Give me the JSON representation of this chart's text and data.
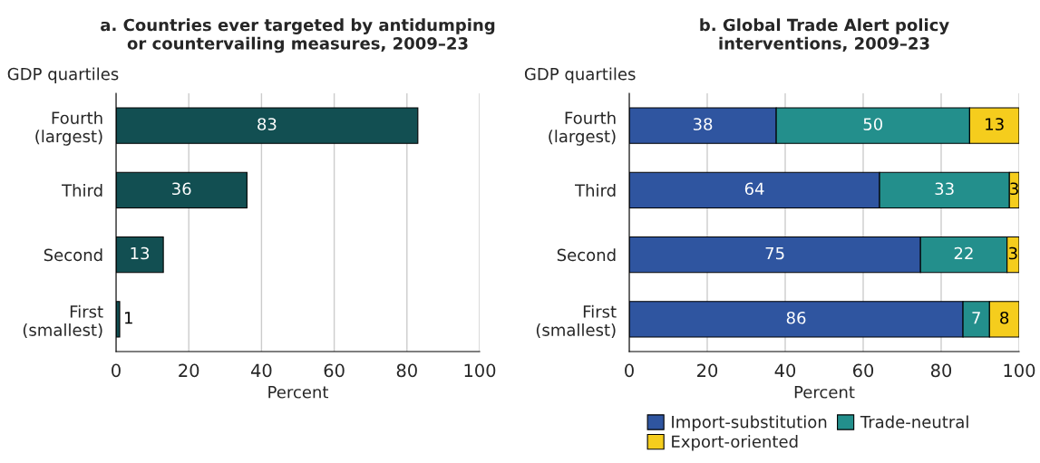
{
  "chart_data": [
    {
      "type": "bar",
      "orientation": "horizontal",
      "title": "a. Countries ever targeted by antidumping\nor countervailing measures, 2009–23",
      "ylabel": "GDP quartiles",
      "xlabel": "Percent",
      "categories": [
        "Fourth\n(largest)",
        "Third",
        "Second",
        "First\n(smallest)"
      ],
      "series": [
        {
          "color": "#124f52",
          "values": [
            83,
            36,
            13,
            1
          ]
        }
      ],
      "data_labels": true,
      "xlim": [
        0,
        100
      ],
      "xticks": [
        0,
        20,
        40,
        60,
        80,
        100
      ],
      "grid": "x",
      "legend": false
    },
    {
      "type": "bar",
      "orientation": "horizontal",
      "stacked": true,
      "title": "b. Global Trade Alert policy\ninterventions, 2009–23",
      "ylabel": "GDP quartiles",
      "xlabel": "Percent",
      "categories": [
        "Fourth\n(largest)",
        "Third",
        "Second",
        "First\n(smallest)"
      ],
      "series": [
        {
          "name": "Import-substitution",
          "color": "#2f55a0",
          "values": [
            37.7,
            64.2,
            74.7,
            85.6
          ],
          "value_labels": [
            "38",
            "64",
            "75",
            "86"
          ]
        },
        {
          "name": "Trade-neutral",
          "color": "#238f8c",
          "values": [
            49.6,
            33.3,
            22.2,
            6.8
          ],
          "value_labels": [
            "50",
            "33",
            "22",
            "7"
          ]
        },
        {
          "name": "Export-oriented",
          "color": "#f5cd1d",
          "values": [
            12.7,
            2.5,
            3.1,
            7.6
          ],
          "value_labels": [
            "13",
            "3",
            "3",
            "8"
          ]
        }
      ],
      "xlim": [
        0,
        100
      ],
      "xticks": [
        0,
        20,
        40,
        60,
        80,
        100
      ],
      "grid": "x",
      "legend": "bottom"
    }
  ]
}
